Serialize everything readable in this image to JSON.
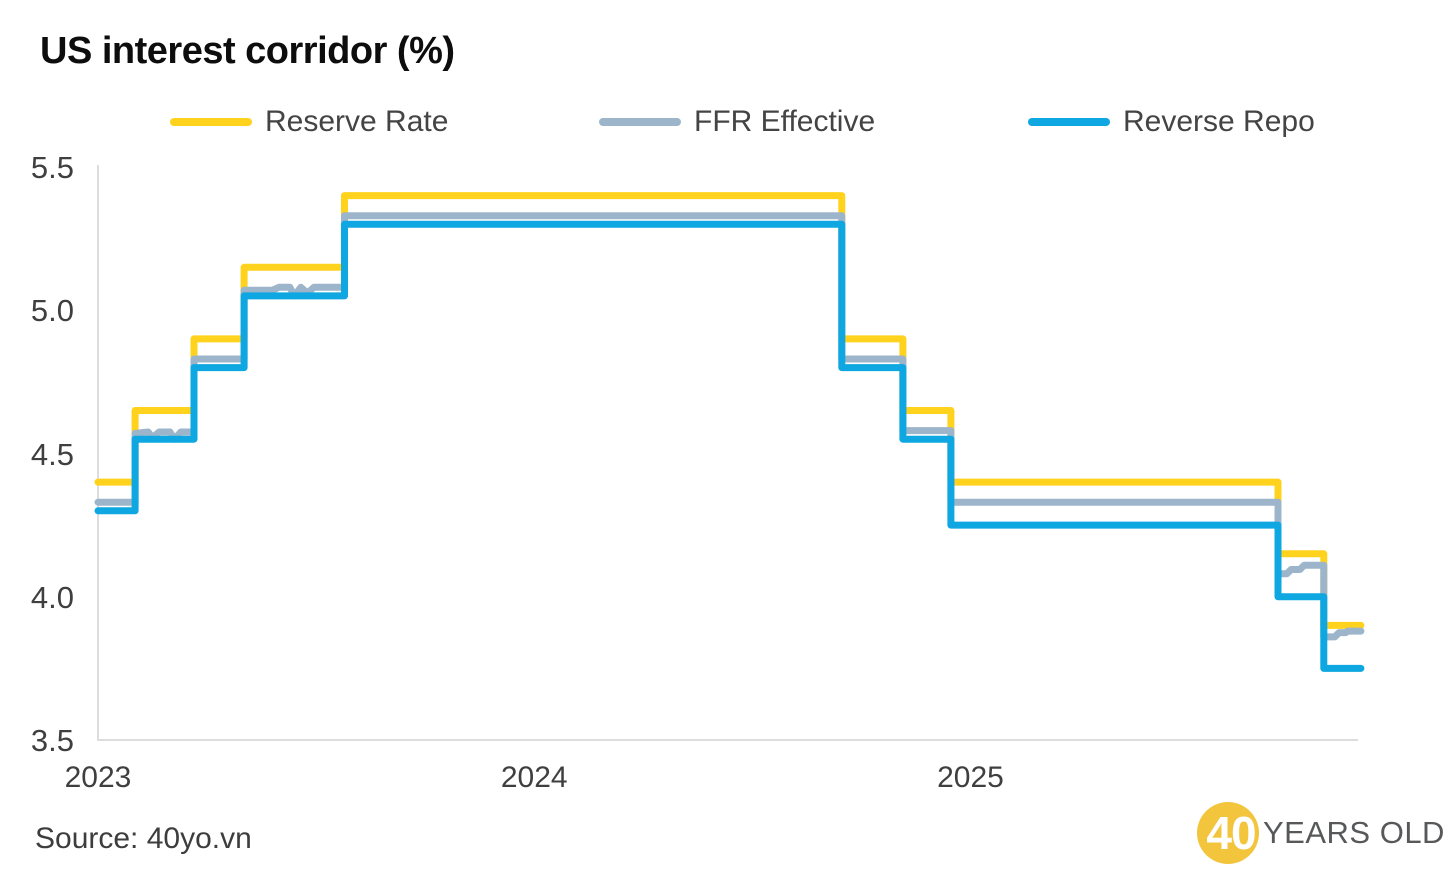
{
  "title": "US interest corridor (%)",
  "source": "Source: 40yo.vn",
  "logo": {
    "circle_text": "40",
    "text": "YEARS OLD",
    "circle_color": "#F2C53D"
  },
  "chart_data": {
    "type": "line",
    "title": "US interest corridor (%)",
    "xlabel": "",
    "ylabel": "",
    "grid": false,
    "legend_position": "top",
    "x_axis": {
      "ticks": [
        2023,
        2024,
        2025
      ],
      "range": [
        2023.0,
        2025.886
      ]
    },
    "y_axis": {
      "ticks": [
        5.5,
        5.0,
        4.5,
        4.0,
        3.5
      ],
      "range": [
        3.5,
        5.5
      ],
      "tick_format": [
        "5.5",
        "5.0",
        "4.5",
        "4.0",
        "3.5"
      ]
    },
    "axis_color": "#DBDDDF",
    "series": [
      {
        "name": "Reserve Rate",
        "color": "#FFD21E",
        "points": [
          [
            2023.0,
            4.4
          ],
          [
            2023.085,
            4.4
          ],
          [
            2023.085,
            4.65
          ],
          [
            2023.22,
            4.65
          ],
          [
            2023.22,
            4.9
          ],
          [
            2023.335,
            4.9
          ],
          [
            2023.335,
            5.15
          ],
          [
            2023.565,
            5.15
          ],
          [
            2023.565,
            5.4
          ],
          [
            2024.705,
            5.4
          ],
          [
            2024.705,
            4.9
          ],
          [
            2024.845,
            4.9
          ],
          [
            2024.845,
            4.65
          ],
          [
            2024.955,
            4.65
          ],
          [
            2024.955,
            4.4
          ],
          [
            2025.705,
            4.4
          ],
          [
            2025.705,
            4.15
          ],
          [
            2025.81,
            4.15
          ],
          [
            2025.81,
            3.9
          ],
          [
            2025.895,
            3.9
          ]
        ]
      },
      {
        "name": "FFR Effective",
        "color": "#9DB5CB",
        "points": [
          [
            2023.0,
            4.33
          ],
          [
            2023.085,
            4.33
          ],
          [
            2023.085,
            4.57
          ],
          [
            2023.115,
            4.575
          ],
          [
            2023.125,
            4.555
          ],
          [
            2023.14,
            4.575
          ],
          [
            2023.165,
            4.575
          ],
          [
            2023.175,
            4.55
          ],
          [
            2023.19,
            4.575
          ],
          [
            2023.22,
            4.575
          ],
          [
            2023.22,
            4.83
          ],
          [
            2023.335,
            4.83
          ],
          [
            2023.335,
            5.07
          ],
          [
            2023.4,
            5.07
          ],
          [
            2023.415,
            5.08
          ],
          [
            2023.44,
            5.08
          ],
          [
            2023.45,
            5.05
          ],
          [
            2023.465,
            5.08
          ],
          [
            2023.48,
            5.06
          ],
          [
            2023.495,
            5.08
          ],
          [
            2023.565,
            5.08
          ],
          [
            2023.565,
            5.33
          ],
          [
            2024.705,
            5.33
          ],
          [
            2024.705,
            4.83
          ],
          [
            2024.845,
            4.83
          ],
          [
            2024.845,
            4.58
          ],
          [
            2024.955,
            4.58
          ],
          [
            2024.955,
            4.33
          ],
          [
            2025.705,
            4.33
          ],
          [
            2025.705,
            4.08
          ],
          [
            2025.725,
            4.08
          ],
          [
            2025.735,
            4.095
          ],
          [
            2025.755,
            4.095
          ],
          [
            2025.765,
            4.11
          ],
          [
            2025.81,
            4.11
          ],
          [
            2025.81,
            3.86
          ],
          [
            2025.835,
            3.86
          ],
          [
            2025.845,
            3.875
          ],
          [
            2025.86,
            3.875
          ],
          [
            2025.865,
            3.88
          ],
          [
            2025.895,
            3.88
          ]
        ]
      },
      {
        "name": "Reverse Repo",
        "color": "#0FA7E1",
        "points": [
          [
            2023.0,
            4.3
          ],
          [
            2023.085,
            4.3
          ],
          [
            2023.085,
            4.55
          ],
          [
            2023.22,
            4.55
          ],
          [
            2023.22,
            4.8
          ],
          [
            2023.335,
            4.8
          ],
          [
            2023.335,
            5.05
          ],
          [
            2023.565,
            5.05
          ],
          [
            2023.565,
            5.3
          ],
          [
            2024.705,
            5.3
          ],
          [
            2024.705,
            4.8
          ],
          [
            2024.845,
            4.8
          ],
          [
            2024.845,
            4.55
          ],
          [
            2024.955,
            4.55
          ],
          [
            2024.955,
            4.25
          ],
          [
            2025.705,
            4.25
          ],
          [
            2025.705,
            4.0
          ],
          [
            2025.81,
            4.0
          ],
          [
            2025.81,
            3.75
          ],
          [
            2025.895,
            3.75
          ]
        ]
      }
    ]
  }
}
